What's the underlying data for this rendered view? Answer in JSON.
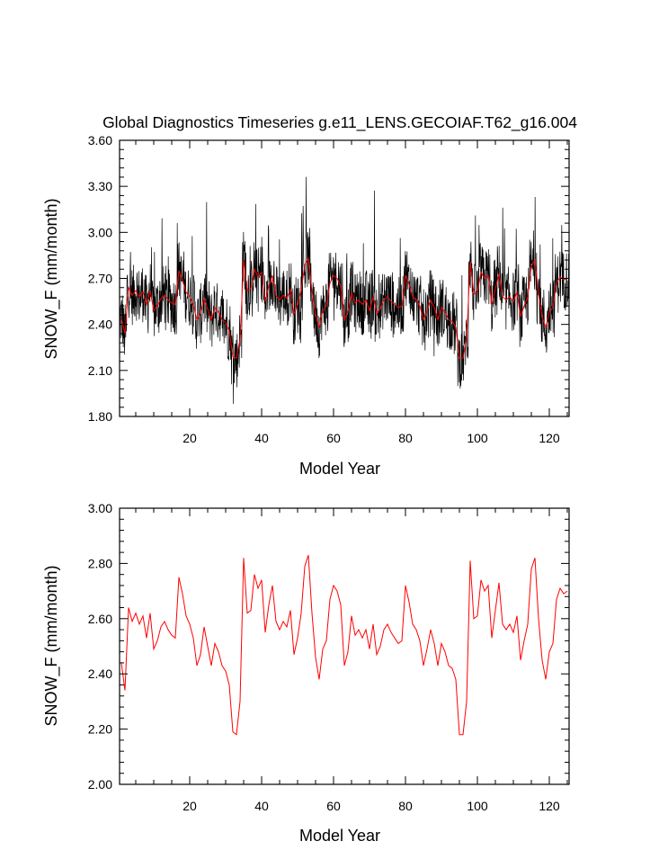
{
  "colors": {
    "monthly": "#000000",
    "annual": "#ff0000",
    "axis": "#000000",
    "background": "#ffffff"
  },
  "chart_data": [
    {
      "type": "line",
      "title": "Global Diagnostics Timeseries g.e11_LENS.GECOIAF.T62_g16.004",
      "xlabel": "Model Year",
      "ylabel": "SNOW_F (mm/month)",
      "xlim": [
        0.5,
        125.5
      ],
      "ylim": [
        1.8,
        3.6
      ],
      "xticks": [
        20,
        40,
        60,
        80,
        100,
        120
      ],
      "xtick_labels": [
        "20",
        "40",
        "60",
        "80",
        "100",
        "120"
      ],
      "yticks": [
        1.8,
        2.1,
        2.4,
        2.7,
        3.0,
        3.3,
        3.6
      ],
      "ytick_labels": [
        "1.80",
        "2.10",
        "2.40",
        "2.70",
        "3.00",
        "3.30",
        "3.60"
      ],
      "series": [
        {
          "name": "monthly",
          "color": "#000000",
          "generated_from": "annual",
          "resolution": "monthly",
          "amplitude": 0.2
        },
        {
          "name": "annual",
          "color": "#ff0000",
          "ref": "annual_means"
        }
      ]
    },
    {
      "type": "line",
      "title": "",
      "xlabel": "Model Year",
      "ylabel": "SNOW_F (mm/month)",
      "xlim": [
        0.5,
        125.5
      ],
      "ylim": [
        2.0,
        3.0
      ],
      "xticks": [
        20,
        40,
        60,
        80,
        100,
        120
      ],
      "xtick_labels": [
        "20",
        "40",
        "60",
        "80",
        "100",
        "120"
      ],
      "yticks": [
        2.0,
        2.2,
        2.4,
        2.6,
        2.8,
        3.0
      ],
      "ytick_labels": [
        "2.00",
        "2.20",
        "2.40",
        "2.60",
        "2.80",
        "3.00"
      ],
      "series": [
        {
          "name": "annual",
          "color": "#ff0000",
          "ref": "annual_means"
        }
      ]
    }
  ],
  "annual_means": {
    "x_start": 1,
    "values": [
      2.44,
      2.34,
      2.64,
      2.59,
      2.62,
      2.58,
      2.61,
      2.53,
      2.62,
      2.49,
      2.52,
      2.57,
      2.59,
      2.56,
      2.54,
      2.53,
      2.75,
      2.69,
      2.61,
      2.58,
      2.53,
      2.43,
      2.47,
      2.57,
      2.5,
      2.43,
      2.51,
      2.48,
      2.43,
      2.41,
      2.36,
      2.19,
      2.18,
      2.3,
      2.82,
      2.62,
      2.63,
      2.76,
      2.71,
      2.74,
      2.55,
      2.65,
      2.72,
      2.59,
      2.56,
      2.59,
      2.57,
      2.63,
      2.47,
      2.53,
      2.62,
      2.79,
      2.83,
      2.62,
      2.46,
      2.38,
      2.49,
      2.52,
      2.67,
      2.72,
      2.7,
      2.65,
      2.43,
      2.48,
      2.61,
      2.54,
      2.56,
      2.53,
      2.56,
      2.49,
      2.58,
      2.47,
      2.5,
      2.56,
      2.58,
      2.55,
      2.53,
      2.51,
      2.52,
      2.72,
      2.66,
      2.58,
      2.56,
      2.52,
      2.43,
      2.49,
      2.56,
      2.51,
      2.43,
      2.51,
      2.48,
      2.43,
      2.42,
      2.38,
      2.18,
      2.18,
      2.3,
      2.81,
      2.6,
      2.61,
      2.74,
      2.7,
      2.72,
      2.53,
      2.63,
      2.73,
      2.58,
      2.56,
      2.58,
      2.55,
      2.61,
      2.45,
      2.52,
      2.58,
      2.78,
      2.82,
      2.6,
      2.45,
      2.38,
      2.48,
      2.51,
      2.67,
      2.71,
      2.69,
      2.7
    ]
  }
}
